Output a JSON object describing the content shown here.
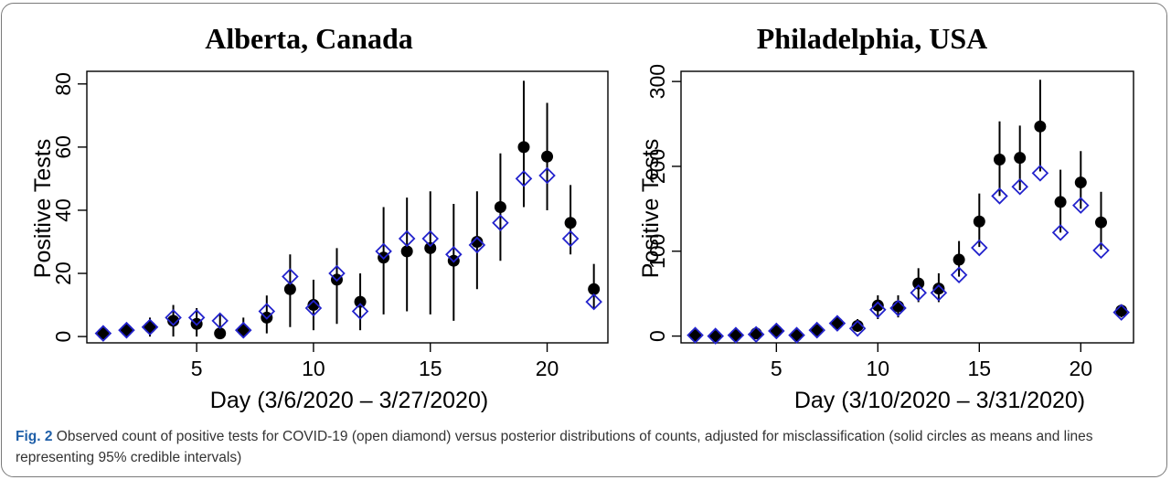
{
  "figure": {
    "caption_label": "Fig. 2",
    "caption_text": "Observed count of positive tests for COVID-19 (open diamond) versus posterior distributions of counts, adjusted for misclassification (solid circles as means and lines representing 95% credible intervals)"
  },
  "colors": {
    "observed_diamond": "#2222cc",
    "posterior_mean": "#000000",
    "credible_interval": "#000000"
  },
  "chart_data": [
    {
      "type": "scatter",
      "title": "Alberta, Canada",
      "xlabel": "Day (3/6/2020 – 3/27/2020)",
      "ylabel": "Positive Tests",
      "xlim": [
        0.3,
        22.6
      ],
      "ylim": [
        -2,
        84
      ],
      "xticks": [
        5,
        10,
        15,
        20
      ],
      "yticks": [
        0,
        20,
        40,
        60,
        80
      ],
      "grid": false,
      "legend": "none",
      "series": [
        {
          "kind": "observed",
          "x": [
            1,
            2,
            3,
            4,
            5,
            6,
            7,
            8,
            9,
            10,
            11,
            12,
            13,
            14,
            15,
            16,
            17,
            18,
            19,
            20,
            21,
            22
          ],
          "y": [
            1,
            2,
            3,
            6,
            6,
            5,
            2,
            8,
            19,
            9,
            20,
            8,
            27,
            31,
            31,
            26,
            29,
            36,
            50,
            51,
            31,
            11
          ]
        },
        {
          "kind": "posterior",
          "x": [
            1,
            2,
            3,
            4,
            5,
            6,
            7,
            8,
            9,
            10,
            11,
            12,
            13,
            14,
            15,
            16,
            17,
            18,
            19,
            20,
            21,
            22
          ],
          "mean": [
            1,
            2,
            3,
            5,
            4,
            1,
            2,
            6,
            15,
            10,
            18,
            11,
            25,
            27,
            28,
            24,
            30,
            41,
            60,
            57,
            36,
            15
          ],
          "lower": [
            0,
            0,
            0,
            0,
            0,
            0,
            0,
            1,
            3,
            2,
            4,
            2,
            7,
            8,
            7,
            5,
            15,
            24,
            41,
            40,
            26,
            9
          ],
          "upper": [
            2,
            4,
            6,
            10,
            9,
            7,
            6,
            13,
            26,
            18,
            28,
            20,
            41,
            44,
            46,
            42,
            46,
            58,
            81,
            74,
            48,
            23
          ]
        }
      ]
    },
    {
      "type": "scatter",
      "title": "Philadelphia, USA",
      "xlabel": "Day (3/10/2020 – 3/31/2020)",
      "ylabel": "Positive Tests",
      "xlim": [
        0.3,
        22.6
      ],
      "ylim": [
        -8,
        312
      ],
      "xticks": [
        5,
        10,
        15,
        20
      ],
      "yticks": [
        0,
        100,
        200,
        300
      ],
      "grid": false,
      "legend": "none",
      "series": [
        {
          "kind": "observed",
          "x": [
            1,
            2,
            3,
            4,
            5,
            6,
            7,
            8,
            9,
            10,
            11,
            12,
            13,
            14,
            15,
            16,
            17,
            18,
            19,
            20,
            21,
            22
          ],
          "y": [
            1,
            0,
            1,
            2,
            6,
            1,
            7,
            15,
            9,
            31,
            33,
            51,
            51,
            72,
            104,
            165,
            176,
            192,
            122,
            154,
            101,
            28
          ]
        },
        {
          "kind": "posterior",
          "x": [
            1,
            2,
            3,
            4,
            5,
            6,
            7,
            8,
            9,
            10,
            11,
            12,
            13,
            14,
            15,
            16,
            17,
            18,
            19,
            20,
            21,
            22
          ],
          "mean": [
            1,
            0,
            1,
            3,
            6,
            1,
            7,
            15,
            12,
            36,
            35,
            62,
            56,
            90,
            135,
            208,
            210,
            247,
            158,
            181,
            134,
            30
          ],
          "lower": [
            0,
            0,
            0,
            0,
            0,
            0,
            2,
            8,
            5,
            20,
            22,
            40,
            40,
            70,
            105,
            165,
            172,
            194,
            122,
            150,
            102,
            22
          ],
          "upper": [
            3,
            2,
            4,
            8,
            12,
            5,
            13,
            22,
            20,
            48,
            48,
            80,
            74,
            112,
            168,
            253,
            248,
            302,
            196,
            218,
            170,
            37
          ]
        }
      ]
    }
  ]
}
